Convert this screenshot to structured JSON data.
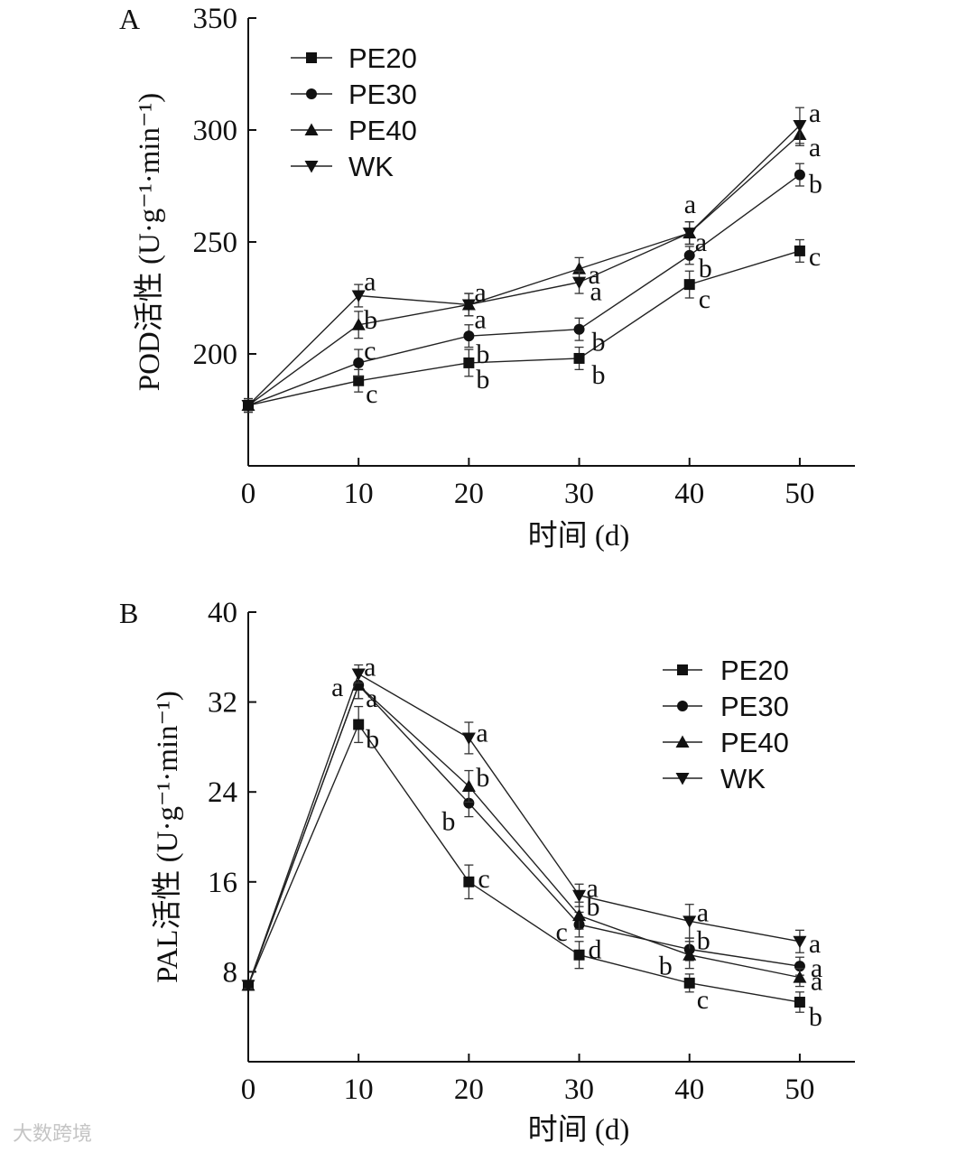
{
  "chart_data": [
    {
      "type": "line",
      "panel_label": "A",
      "ylabel": "POD活性 (U·g⁻¹·min⁻¹)",
      "xlabel": "时间 (d)",
      "xlim": [
        0,
        55
      ],
      "ylim": [
        150,
        350
      ],
      "xticks": [
        0,
        10,
        20,
        30,
        40,
        50
      ],
      "yticks": [
        200,
        250,
        300,
        350
      ],
      "x": [
        0,
        10,
        20,
        30,
        40,
        50
      ],
      "legend_position": "top-left",
      "series": [
        {
          "name": "PE20",
          "marker": "square",
          "values": [
            177,
            188,
            196,
            198,
            231,
            246
          ],
          "errors": [
            3,
            5,
            6,
            5,
            6,
            5
          ],
          "letters": [
            "",
            "c",
            "b",
            "b",
            "c",
            "c"
          ]
        },
        {
          "name": "PE30",
          "marker": "circle",
          "values": [
            177,
            196,
            208,
            211,
            244,
            280
          ],
          "errors": [
            3,
            6,
            5,
            5,
            4,
            5
          ],
          "letters": [
            "",
            "c",
            "b",
            "b",
            "b",
            "b"
          ]
        },
        {
          "name": "PE40",
          "marker": "triangle-up",
          "values": [
            177,
            213,
            222,
            238,
            254,
            298
          ],
          "errors": [
            3,
            6,
            5,
            5,
            5,
            5
          ],
          "letters": [
            "",
            "b",
            "a",
            "a",
            "a",
            "a"
          ]
        },
        {
          "name": "WK",
          "marker": "triangle-down",
          "values": [
            177,
            226,
            222,
            232,
            254,
            302
          ],
          "errors": [
            3,
            5,
            5,
            5,
            5,
            8
          ],
          "letters": [
            "",
            "a",
            "a",
            "a",
            "a",
            "a"
          ]
        }
      ]
    },
    {
      "type": "line",
      "panel_label": "B",
      "ylabel": "PAL活性 (U·g⁻¹·min⁻¹)",
      "xlabel": "时间 (d)",
      "xlim": [
        0,
        55
      ],
      "ylim": [
        0,
        40
      ],
      "xticks": [
        0,
        10,
        20,
        30,
        40,
        50
      ],
      "yticks": [
        8,
        16,
        24,
        32,
        40
      ],
      "x": [
        0,
        10,
        20,
        30,
        40,
        50
      ],
      "legend_position": "top-right",
      "series": [
        {
          "name": "PE20",
          "marker": "square",
          "values": [
            6.8,
            30,
            16,
            9.5,
            7,
            5.3
          ],
          "errors": [
            0.3,
            1.6,
            1.5,
            1.2,
            0.8,
            0.9
          ],
          "letters": [
            "",
            "b",
            "c",
            "d",
            "c",
            "b"
          ]
        },
        {
          "name": "PE30",
          "marker": "circle",
          "values": [
            6.8,
            33.5,
            23,
            12.2,
            10,
            8.5
          ],
          "errors": [
            0.3,
            1.2,
            1.2,
            1.1,
            1.0,
            0.8
          ],
          "letters": [
            "",
            "a",
            "b",
            "c",
            "b",
            "a"
          ]
        },
        {
          "name": "PE40",
          "marker": "triangle-up",
          "values": [
            6.8,
            33.5,
            24.5,
            13,
            9.5,
            7.5
          ],
          "errors": [
            0.3,
            1.2,
            1.4,
            1.2,
            1.2,
            0.8
          ],
          "letters": [
            "",
            "a",
            "b",
            "b",
            "b",
            "a"
          ]
        },
        {
          "name": "WK",
          "marker": "triangle-down",
          "values": [
            6.8,
            34.5,
            28.8,
            14.8,
            12.5,
            10.7
          ],
          "errors": [
            0.3,
            0.8,
            1.4,
            1.0,
            1.5,
            1.0
          ],
          "letters": [
            "",
            "a",
            "a",
            "a",
            "a",
            "a"
          ]
        }
      ]
    }
  ],
  "watermark": "大数跨境"
}
